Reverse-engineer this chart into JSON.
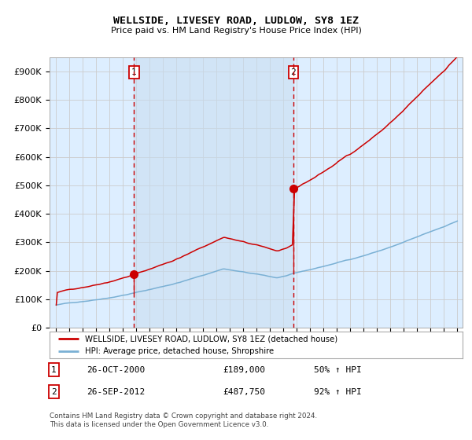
{
  "title": "WELLSIDE, LIVESEY ROAD, LUDLOW, SY8 1EZ",
  "subtitle": "Price paid vs. HM Land Registry's House Price Index (HPI)",
  "legend_line1": "WELLSIDE, LIVESEY ROAD, LUDLOW, SY8 1EZ (detached house)",
  "legend_line2": "HPI: Average price, detached house, Shropshire",
  "annotation1_date": "26-OCT-2000",
  "annotation1_price": 189000,
  "annotation1_pct": "50% ↑ HPI",
  "annotation2_date": "26-SEP-2012",
  "annotation2_price": 487750,
  "annotation2_pct": "92% ↑ HPI",
  "footnote": "Contains HM Land Registry data © Crown copyright and database right 2024.\nThis data is licensed under the Open Government Licence v3.0.",
  "hpi_color": "#7ab0d4",
  "price_color": "#cc0000",
  "marker_color": "#cc0000",
  "vline1_color": "#cc0000",
  "vline2_color": "#cc0000",
  "shade_color": "#ddeeff",
  "background_color": "#ffffff",
  "grid_color": "#cccccc",
  "ylim": [
    0,
    950000
  ],
  "yticks": [
    0,
    100000,
    200000,
    300000,
    400000,
    500000,
    600000,
    700000,
    800000,
    900000
  ],
  "start_year": 1995,
  "end_year": 2025,
  "sale1_year": 2000.82,
  "sale2_year": 2012.74,
  "hpi_seed": 42,
  "red_seed": 7
}
